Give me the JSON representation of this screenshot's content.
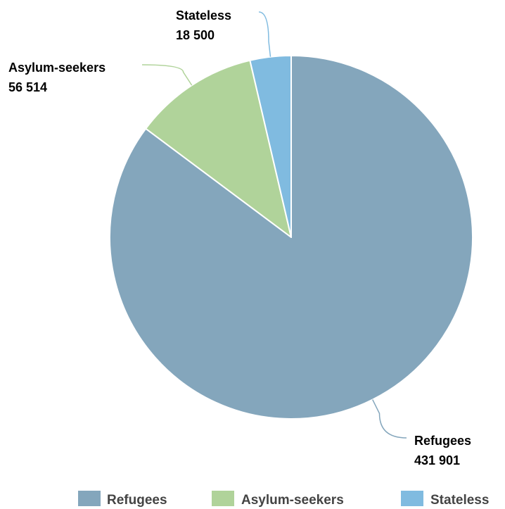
{
  "chart_data": {
    "type": "pie",
    "title": "",
    "series": [
      {
        "name": "Refugees",
        "value": 431901,
        "label_value": "431 901",
        "color": "#84a6bc"
      },
      {
        "name": "Asylum-seekers",
        "value": 56514,
        "label_value": "56 514",
        "color": "#b0d39a"
      },
      {
        "name": "Stateless",
        "value": 18500,
        "label_value": "18 500",
        "color": "#80bbe0"
      }
    ],
    "legend_position": "bottom"
  }
}
